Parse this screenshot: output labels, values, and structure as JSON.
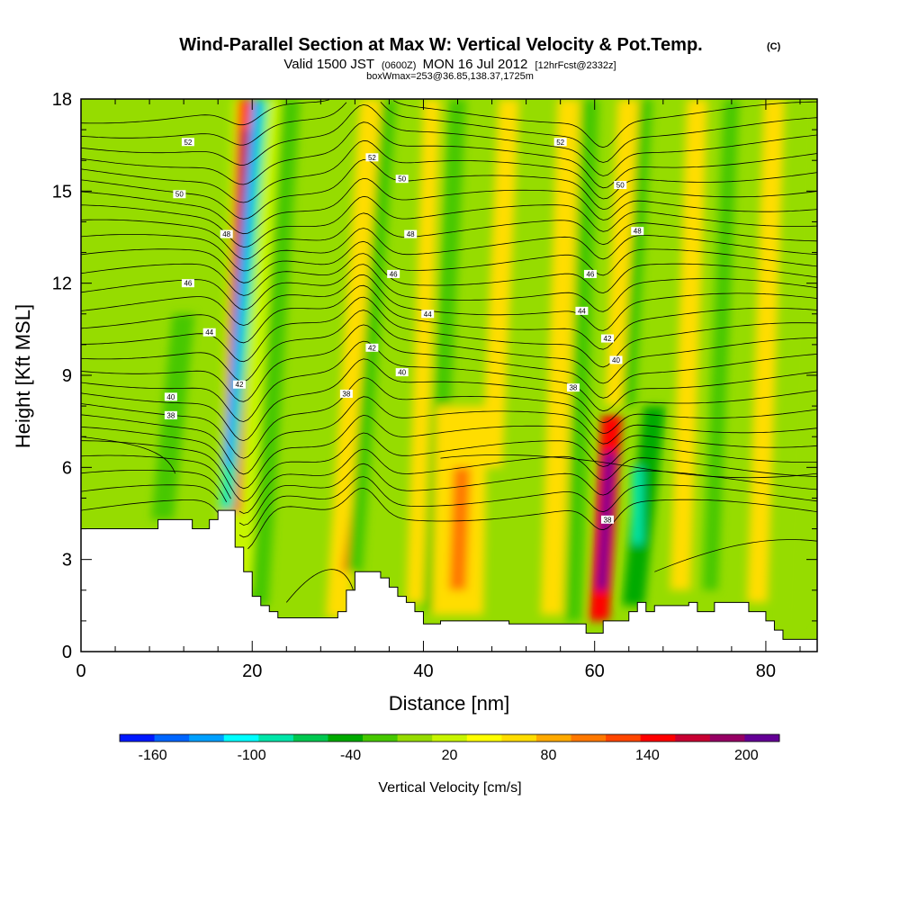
{
  "chart_data": {
    "type": "heatmap",
    "title": "Wind-Parallel Section at Max W: Vertical Velocity & Pot.Temp.",
    "title_mark": "(C)",
    "subtitle": {
      "valid": "Valid 1500 JST",
      "zulu": "(0600Z)",
      "date": "MON 16 Jul 2012",
      "forecast": "[12hrFcst@2332z]",
      "box": "boxWmax=253@36.85,138.37,1725m"
    },
    "xlabel": "Distance [nm]",
    "ylabel": "Height [Kft MSL]",
    "xlim": [
      0,
      86
    ],
    "ylim": [
      0,
      18
    ],
    "xticks": [
      "0",
      "20",
      "40",
      "60",
      "80"
    ],
    "yticks": [
      "0",
      "3",
      "6",
      "9",
      "12",
      "15",
      "18"
    ],
    "colorbar": {
      "label": "Vertical Velocity [cm/s]",
      "min": -180,
      "max": 220,
      "step": 20,
      "tick_labels": [
        "-160",
        "-100",
        "-40",
        "20",
        "80",
        "140",
        "200"
      ],
      "colors": [
        "#0019ff",
        "#0066ff",
        "#00a0ff",
        "#00ffff",
        "#00e6aa",
        "#00c850",
        "#00aa00",
        "#46c800",
        "#96dc00",
        "#c8f500",
        "#ffff00",
        "#ffdd00",
        "#ffaa00",
        "#ff7800",
        "#ff4600",
        "#ff0000",
        "#c80032",
        "#960064",
        "#640096"
      ]
    },
    "background_color": "#96dc00",
    "terrain": {
      "x": [
        0,
        9,
        9,
        13,
        13,
        15,
        15,
        16,
        16,
        18,
        18,
        19,
        19,
        20,
        20,
        21,
        21,
        22,
        22,
        23,
        23,
        30,
        30,
        31,
        31,
        32,
        32,
        35,
        35,
        36,
        36,
        37,
        37,
        38,
        38,
        39,
        39,
        40,
        40,
        42,
        42,
        50,
        50,
        59,
        59,
        61,
        61,
        64,
        64,
        65,
        65,
        66,
        66,
        67,
        67,
        71,
        71,
        72,
        72,
        74,
        74,
        78,
        78,
        80,
        80,
        81,
        81,
        82,
        82,
        86
      ],
      "y": [
        4,
        4,
        4.3,
        4.3,
        4,
        4,
        4.3,
        4.3,
        4.6,
        4.6,
        3.4,
        3.4,
        2.6,
        2.6,
        1.8,
        1.8,
        1.5,
        1.5,
        1.3,
        1.3,
        1.1,
        1.1,
        1.3,
        1.3,
        2,
        2,
        2.6,
        2.6,
        2.4,
        2.4,
        2.1,
        2.1,
        1.8,
        1.8,
        1.6,
        1.6,
        1.3,
        1.3,
        0.9,
        0.9,
        1,
        1,
        0.9,
        0.9,
        0.6,
        0.6,
        1,
        1,
        1.3,
        1.3,
        1.6,
        1.6,
        1.3,
        1.3,
        1.5,
        1.5,
        1.6,
        1.6,
        1.3,
        1.3,
        1.6,
        1.6,
        1.3,
        1.3,
        1,
        1,
        0.7,
        0.7,
        0.4,
        0.4
      ]
    },
    "updrafts": [
      {
        "x": [
          9.5,
          12
        ],
        "y": [
          4.3,
          11
        ],
        "w": 1.3,
        "v": -30
      },
      {
        "x": [
          18.5,
          20.5
        ],
        "y": [
          2,
          18
        ],
        "w": 2.8,
        "v": 15
      },
      {
        "x": [
          17.5,
          19.5
        ],
        "y": [
          4.5,
          18
        ],
        "w": 1.2,
        "v": 100
      },
      {
        "x": [
          17.8,
          19.2
        ],
        "y": [
          8,
          17
        ],
        "w": 0.6,
        "v": 150
      },
      {
        "x": [
          17,
          21
        ],
        "y": [
          4.6,
          18
        ],
        "w": 0.9,
        "v": -100
      },
      {
        "x": [
          17,
          20.5
        ],
        "y": [
          6,
          18
        ],
        "w": 0.5,
        "v": -140
      },
      {
        "x": [
          20.8,
          24.5
        ],
        "y": [
          1.5,
          18
        ],
        "w": 1.1,
        "v": -30
      },
      {
        "x": [
          30,
          34
        ],
        "y": [
          1.1,
          18
        ],
        "w": 1.4,
        "v": 40
      },
      {
        "x": [
          31,
          33
        ],
        "y": [
          2.6,
          6
        ],
        "w": 0.6,
        "v": 80
      },
      {
        "x": [
          32,
          36
        ],
        "y": [
          2.6,
          18
        ],
        "w": 0.9,
        "v": -40
      },
      {
        "x": [
          39,
          41
        ],
        "y": [
          1.6,
          18
        ],
        "w": 1.0,
        "v": 40
      },
      {
        "x": [
          41,
          44
        ],
        "y": [
          1.3,
          18
        ],
        "w": 1.0,
        "v": -40
      },
      {
        "x": [
          44,
          44.5
        ],
        "y": [
          1.2,
          8
        ],
        "w": 3.0,
        "v": 40
      },
      {
        "x": [
          44,
          44.5
        ],
        "y": [
          2,
          6
        ],
        "w": 1.0,
        "v": 80
      },
      {
        "x": [
          48,
          50
        ],
        "y": [
          6,
          18
        ],
        "w": 1.2,
        "v": 40
      },
      {
        "x": [
          55,
          57
        ],
        "y": [
          1.2,
          18
        ],
        "w": 1.3,
        "v": 40
      },
      {
        "x": [
          57.5,
          59.5
        ],
        "y": [
          1.0,
          18
        ],
        "w": 1.0,
        "v": -40
      },
      {
        "x": [
          60.5,
          62
        ],
        "y": [
          1,
          7.7
        ],
        "w": 1.2,
        "v": 120
      },
      {
        "x": [
          60.8,
          61.8
        ],
        "y": [
          2,
          6.5
        ],
        "w": 0.6,
        "v": 200
      },
      {
        "x": [
          62.5,
          64
        ],
        "y": [
          8,
          18
        ],
        "w": 1.3,
        "v": 40
      },
      {
        "x": [
          64.5,
          67
        ],
        "y": [
          1.5,
          8
        ],
        "w": 1.3,
        "v": -60
      },
      {
        "x": [
          65,
          65
        ],
        "y": [
          3.5,
          6
        ],
        "w": 0.6,
        "v": -100
      },
      {
        "x": [
          64,
          66
        ],
        "y": [
          8,
          18
        ],
        "w": 0.8,
        "v": -40
      },
      {
        "x": [
          70,
          72
        ],
        "y": [
          2,
          18
        ],
        "w": 1.2,
        "v": 40
      },
      {
        "x": [
          73.5,
          76
        ],
        "y": [
          2,
          18
        ],
        "w": 0.9,
        "v": -40
      },
      {
        "x": [
          79,
          81
        ],
        "y": [
          1.6,
          18
        ],
        "w": 1.2,
        "v": 40
      },
      {
        "x": [
          83,
          85
        ],
        "y": [
          1,
          18
        ],
        "w": 1.0,
        "v": -20
      }
    ],
    "contour_labels": [
      {
        "text": "52",
        "x": 12.5,
        "y": 16.6
      },
      {
        "text": "52",
        "x": 34,
        "y": 16.1
      },
      {
        "text": "52",
        "x": 56,
        "y": 16.6
      },
      {
        "text": "50",
        "x": 11.5,
        "y": 14.9
      },
      {
        "text": "50",
        "x": 37.5,
        "y": 15.4
      },
      {
        "text": "50",
        "x": 63,
        "y": 15.2
      },
      {
        "text": "48",
        "x": 38.5,
        "y": 13.6
      },
      {
        "text": "48",
        "x": 65,
        "y": 13.7
      },
      {
        "text": "48",
        "x": 17,
        "y": 13.6
      },
      {
        "text": "46",
        "x": 12.5,
        "y": 12
      },
      {
        "text": "46",
        "x": 36.5,
        "y": 12.3
      },
      {
        "text": "46",
        "x": 59.5,
        "y": 12.3
      },
      {
        "text": "44",
        "x": 15,
        "y": 10.4
      },
      {
        "text": "44",
        "x": 40.5,
        "y": 11
      },
      {
        "text": "44",
        "x": 58.5,
        "y": 11.1
      },
      {
        "text": "42",
        "x": 34,
        "y": 9.9
      },
      {
        "text": "42",
        "x": 61.5,
        "y": 10.2
      },
      {
        "text": "42",
        "x": 18.5,
        "y": 8.7
      },
      {
        "text": "40",
        "x": 10.5,
        "y": 8.3
      },
      {
        "text": "40",
        "x": 37.5,
        "y": 9.1
      },
      {
        "text": "40",
        "x": 62.5,
        "y": 9.5
      },
      {
        "text": "38",
        "x": 10.5,
        "y": 7.7
      },
      {
        "text": "38",
        "x": 31,
        "y": 8.4
      },
      {
        "text": "38",
        "x": 57.5,
        "y": 8.6
      },
      {
        "text": "38",
        "x": 61.5,
        "y": 4.3
      }
    ]
  }
}
